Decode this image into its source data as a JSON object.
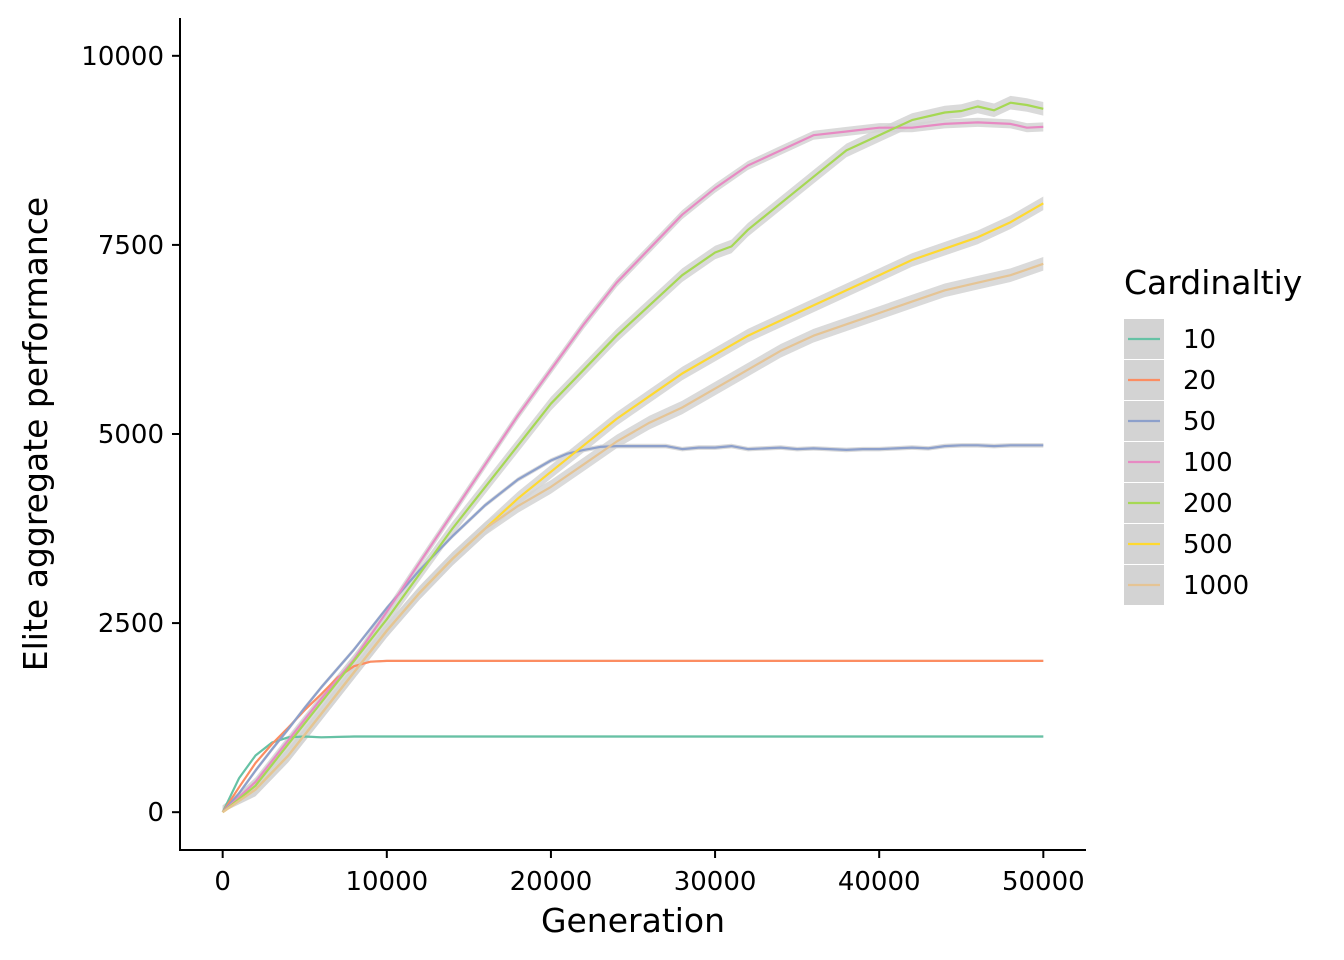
{
  "chart_data": {
    "type": "line",
    "title": "",
    "xlabel": "Generation",
    "ylabel": "Elite aggregate performance",
    "xlim": [
      -2600,
      52600
    ],
    "ylim": [
      -500,
      10500
    ],
    "x_ticks": [
      0,
      10000,
      20000,
      30000,
      40000,
      50000
    ],
    "x_tick_labels": [
      "0",
      "10000",
      "20000",
      "30000",
      "40000",
      "50000"
    ],
    "y_ticks": [
      0,
      2500,
      5000,
      7500,
      10000
    ],
    "y_tick_labels": [
      "0",
      "2500",
      "5000",
      "7500",
      "10000"
    ],
    "grid": false,
    "confidence_band_color": "#d3d3d3",
    "legend": {
      "title": "Cardinaltiy",
      "placement": "right"
    },
    "series": [
      {
        "name": "10",
        "color": "#66c2a5",
        "x": [
          0,
          1000,
          2000,
          3000,
          4000,
          5000,
          6000,
          8000,
          10000,
          20000,
          30000,
          40000,
          50000
        ],
        "y": [
          0,
          450,
          750,
          920,
          990,
          1000,
          990,
          1000,
          1000,
          1000,
          1000,
          1000,
          1000
        ],
        "band": 15
      },
      {
        "name": "20",
        "color": "#fc8d62",
        "x": [
          0,
          1000,
          2000,
          3000,
          4000,
          5000,
          6000,
          7000,
          8000,
          9000,
          10000,
          15000,
          20000,
          25000,
          30000,
          35000,
          40000,
          45000,
          50000
        ],
        "y": [
          0,
          330,
          650,
          900,
          1120,
          1350,
          1560,
          1780,
          1930,
          1990,
          2000,
          2000,
          2000,
          2000,
          2000,
          2000,
          2000,
          2000,
          2000
        ],
        "band": 15
      },
      {
        "name": "50",
        "color": "#8da0cb",
        "x": [
          0,
          1000,
          2000,
          3000,
          4000,
          5000,
          6000,
          8000,
          10000,
          12000,
          14000,
          16000,
          18000,
          20000,
          21000,
          22000,
          23000,
          24000,
          25000,
          26000,
          27000,
          28000,
          29000,
          30000,
          31000,
          32000,
          33000,
          34000,
          35000,
          36000,
          37000,
          38000,
          39000,
          40000,
          41000,
          42000,
          43000,
          44000,
          45000,
          46000,
          47000,
          48000,
          49000,
          50000
        ],
        "y": [
          0,
          250,
          550,
          830,
          1100,
          1380,
          1650,
          2150,
          2700,
          3200,
          3650,
          4060,
          4400,
          4650,
          4740,
          4790,
          4830,
          4840,
          4840,
          4840,
          4840,
          4800,
          4820,
          4820,
          4840,
          4800,
          4810,
          4820,
          4800,
          4810,
          4800,
          4790,
          4800,
          4800,
          4810,
          4820,
          4810,
          4840,
          4850,
          4850,
          4840,
          4850,
          4850,
          4850
        ],
        "band": 30
      },
      {
        "name": "100",
        "color": "#e78ac3",
        "x": [
          0,
          2000,
          4000,
          6000,
          8000,
          10000,
          12000,
          14000,
          16000,
          18000,
          20000,
          22000,
          24000,
          26000,
          28000,
          30000,
          32000,
          34000,
          36000,
          38000,
          40000,
          42000,
          44000,
          46000,
          48000,
          49000,
          50000
        ],
        "y": [
          0,
          400,
          950,
          1500,
          2020,
          2650,
          3300,
          3950,
          4600,
          5250,
          5850,
          6450,
          7000,
          7450,
          7900,
          8250,
          8550,
          8750,
          8950,
          9000,
          9050,
          9050,
          9100,
          9120,
          9100,
          9050,
          9060
        ],
        "band": 60
      },
      {
        "name": "200",
        "color": "#a6d854",
        "x": [
          0,
          2000,
          4000,
          6000,
          8000,
          10000,
          12000,
          14000,
          16000,
          18000,
          20000,
          22000,
          24000,
          26000,
          28000,
          30000,
          31000,
          32000,
          34000,
          36000,
          38000,
          40000,
          42000,
          44000,
          45000,
          46000,
          47000,
          48000,
          49000,
          50000
        ],
        "y": [
          0,
          350,
          900,
          1450,
          2000,
          2550,
          3150,
          3750,
          4300,
          4850,
          5400,
          5850,
          6300,
          6700,
          7100,
          7400,
          7480,
          7700,
          8050,
          8400,
          8750,
          8950,
          9150,
          9250,
          9270,
          9330,
          9280,
          9380,
          9350,
          9300
        ],
        "band": 90
      },
      {
        "name": "500",
        "color": "#ffd92f",
        "x": [
          0,
          2000,
          4000,
          6000,
          8000,
          10000,
          12000,
          14000,
          16000,
          18000,
          20000,
          22000,
          24000,
          26000,
          28000,
          30000,
          32000,
          34000,
          36000,
          38000,
          40000,
          42000,
          44000,
          46000,
          48000,
          50000
        ],
        "y": [
          0,
          300,
          750,
          1300,
          1850,
          2400,
          2900,
          3350,
          3750,
          4150,
          4500,
          4850,
          5200,
          5500,
          5800,
          6050,
          6300,
          6500,
          6700,
          6900,
          7100,
          7300,
          7450,
          7600,
          7800,
          8050
        ],
        "band": 90
      },
      {
        "name": "1000",
        "color": "#e5c494",
        "x": [
          0,
          2000,
          4000,
          6000,
          8000,
          10000,
          12000,
          14000,
          16000,
          18000,
          20000,
          22000,
          24000,
          26000,
          28000,
          30000,
          32000,
          34000,
          36000,
          38000,
          40000,
          42000,
          44000,
          46000,
          48000,
          50000
        ],
        "y": [
          0,
          300,
          750,
          1300,
          1850,
          2400,
          2900,
          3350,
          3750,
          4050,
          4300,
          4600,
          4900,
          5150,
          5350,
          5600,
          5850,
          6100,
          6300,
          6450,
          6600,
          6750,
          6900,
          7000,
          7100,
          7250
        ],
        "band": 90
      }
    ]
  }
}
